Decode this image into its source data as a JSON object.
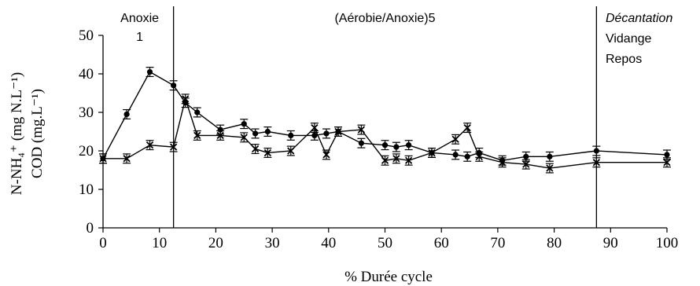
{
  "chart_data": {
    "type": "line",
    "title": "",
    "xlabel": "% Durée cycle",
    "ylabel_lines": [
      "N-NH₄⁺ (mg N.L⁻¹)",
      "COD (mg.L⁻¹)"
    ],
    "xlim": [
      0,
      100
    ],
    "ylim": [
      0,
      50
    ],
    "xticks": [
      "0",
      "10",
      "20",
      "30",
      "40",
      "50",
      "60",
      "70",
      "80",
      "90",
      "100"
    ],
    "yticks": [
      "0",
      "10",
      "20",
      "30",
      "40",
      "50"
    ],
    "grid": false,
    "phase_lines": [
      12.5,
      87.5
    ],
    "phase_labels": [
      {
        "text": "Anoxie",
        "x": 6.5,
        "style": "normal"
      },
      {
        "text": "1",
        "x": 6.5,
        "style": "normal"
      },
      {
        "text": "(Aérobie/Anoxie)5",
        "x": 50,
        "style": "normal"
      },
      {
        "text": "Décantation",
        "x": 88,
        "style": "italic"
      },
      {
        "text": "Vidange",
        "x": 88,
        "style": "normal"
      },
      {
        "text": "Repos",
        "x": 88,
        "style": "normal"
      }
    ],
    "series": [
      {
        "marker": "circle",
        "x": [
          0,
          4.2,
          8.3,
          12.5,
          14.6,
          16.7,
          20.8,
          25,
          27,
          29.2,
          33.3,
          37.5,
          39.6,
          41.7,
          45.8,
          50,
          52,
          54.2,
          58.3,
          62.5,
          64.6,
          66.7,
          70.8,
          75,
          79.2,
          87.5,
          100
        ],
        "y": [
          18,
          29.5,
          40.5,
          37,
          32.5,
          30,
          25.5,
          27,
          24.5,
          25,
          24,
          24,
          24.5,
          25,
          22,
          21.5,
          21,
          21.5,
          19.5,
          19,
          18.5,
          19.5,
          17.5,
          18.5,
          18.5,
          20,
          19
        ],
        "yerr": 1.2
      },
      {
        "marker": "x",
        "x": [
          0,
          4.2,
          8.3,
          12.5,
          14.6,
          16.7,
          20.8,
          25,
          27,
          29.2,
          33.3,
          37.5,
          39.6,
          41.7,
          45.8,
          50,
          52,
          54.2,
          58.3,
          62.5,
          64.6,
          66.7,
          70.8,
          75,
          79.2,
          87.5,
          100
        ],
        "y": [
          18,
          18,
          21.5,
          21,
          33.5,
          24,
          24,
          23.5,
          20.5,
          19.5,
          20,
          26,
          19,
          25,
          25.5,
          17.5,
          18,
          17.5,
          19.5,
          23,
          26,
          18.5,
          17,
          16.5,
          15.5,
          17,
          17
        ],
        "yerr": 1.2
      }
    ]
  }
}
